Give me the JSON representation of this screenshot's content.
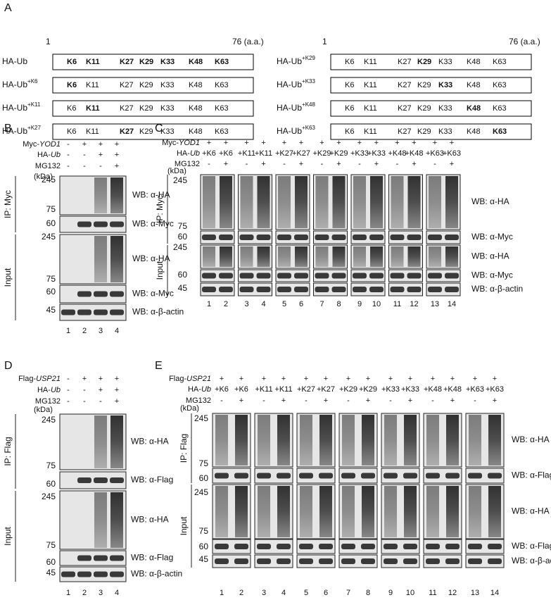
{
  "panel_a": {
    "label": "A",
    "start": "1",
    "end": "76 (a.a.)",
    "sites": [
      "K6",
      "K11",
      "K27",
      "K29",
      "K33",
      "K48",
      "K63"
    ],
    "rows": [
      {
        "name": "HA-Ub",
        "bold": [
          "K6",
          "K11",
          "K27",
          "K29",
          "K33",
          "K48",
          "K63"
        ]
      },
      {
        "name": "HA-Ub",
        "sup": "+K6",
        "bold": [
          "K6"
        ]
      },
      {
        "name": "HA-Ub",
        "sup": "+K11",
        "bold": [
          "K11"
        ]
      },
      {
        "name": "HA-Ub",
        "sup": "+K27",
        "bold": [
          "K27"
        ]
      },
      {
        "name": "HA-Ub",
        "sup": "+K29",
        "bold": [
          "K29"
        ]
      },
      {
        "name": "HA-Ub",
        "sup": "+K33",
        "bold": [
          "K33"
        ]
      },
      {
        "name": "HA-Ub",
        "sup": "+K48",
        "bold": [
          "K48"
        ]
      },
      {
        "name": "HA-Ub",
        "sup": "+K63",
        "bold": [
          "K63"
        ]
      }
    ]
  },
  "panels": [
    {
      "label": "B",
      "unit": "(kDa)",
      "conditions": [
        {
          "name": "Myc-",
          "gene": "YOD1",
          "values": [
            "-",
            "+",
            "+",
            "+"
          ]
        },
        {
          "name": "HA-",
          "gene": "Ub",
          "values": [
            "-",
            "-",
            "+",
            "+"
          ]
        },
        {
          "name": "MG132",
          "values": [
            "-",
            "-",
            "-",
            "+"
          ]
        }
      ],
      "groups": [
        {
          "name": "IP: Myc",
          "blots": [
            {
              "label": "WB: α-HA",
              "kind": "smear",
              "markers": [
                245,
                75
              ]
            },
            {
              "label": "WB: α-Myc",
              "kind": "band",
              "markers": [
                60
              ]
            }
          ]
        },
        {
          "name": "Input",
          "blots": [
            {
              "label": "WB: α-HA",
              "kind": "smear",
              "markers": [
                245,
                75
              ]
            },
            {
              "label": "WB: α-Myc",
              "kind": "band",
              "markers": [
                60
              ]
            },
            {
              "label": "WB: α-β-actin",
              "kind": "loading",
              "markers": [
                45
              ]
            }
          ]
        }
      ],
      "lanes": [
        "1",
        "2",
        "3",
        "4"
      ]
    },
    {
      "label": "C",
      "unit": "(kDa)",
      "conditions": [
        {
          "name": "Myc-",
          "gene": "YOD1",
          "values": [
            "+",
            "+",
            "+",
            "+",
            "+",
            "+",
            "+",
            "+",
            "+",
            "+",
            "+",
            "+",
            "+",
            "+"
          ]
        },
        {
          "name": "HA-",
          "gene": "Ub",
          "values": [
            "+K6",
            "+K6",
            "+K11",
            "+K11",
            "+K27",
            "+K27",
            "+K29",
            "+K29",
            "+K33",
            "+K33",
            "+K48",
            "+K48",
            "+K63",
            "+K63"
          ]
        },
        {
          "name": "MG132",
          "values": [
            "-",
            "+",
            "-",
            "+",
            "-",
            "+",
            "-",
            "+",
            "-",
            "+",
            "-",
            "+",
            "-",
            "+"
          ]
        }
      ],
      "groups": [
        {
          "name": "IP: Myc",
          "blots": [
            {
              "label": "WB: α-HA",
              "kind": "smear",
              "markers": [
                245,
                75
              ]
            },
            {
              "label": "WB: α-Myc",
              "kind": "band",
              "markers": [
                60
              ]
            }
          ]
        },
        {
          "name": "Input",
          "blots": [
            {
              "label": "WB: α-HA",
              "kind": "smear",
              "markers": [
                245
              ]
            },
            {
              "label": "WB: α-Myc",
              "kind": "band",
              "markers": [
                60
              ]
            },
            {
              "label": "WB: α-β-actin",
              "kind": "loading",
              "markers": [
                45
              ]
            }
          ]
        }
      ],
      "lanes": [
        "1",
        "2",
        "3",
        "4",
        "5",
        "6",
        "7",
        "8",
        "9",
        "10",
        "11",
        "12",
        "13",
        "14"
      ]
    },
    {
      "label": "D",
      "unit": "(kDa)",
      "conditions": [
        {
          "name": "Flag-",
          "gene": "USP21",
          "values": [
            "-",
            "+",
            "+",
            "+"
          ]
        },
        {
          "name": "HA-",
          "gene": "Ub",
          "values": [
            "-",
            "-",
            "+",
            "+"
          ]
        },
        {
          "name": "MG132",
          "values": [
            "-",
            "-",
            "-",
            "+"
          ]
        }
      ],
      "groups": [
        {
          "name": "IP: Flag",
          "blots": [
            {
              "label": "WB: α-HA",
              "kind": "smear",
              "markers": [
                245,
                75
              ]
            },
            {
              "label": "WB: α-Flag",
              "kind": "band",
              "markers": [
                60
              ]
            }
          ]
        },
        {
          "name": "Input",
          "blots": [
            {
              "label": "WB: α-HA",
              "kind": "smear",
              "markers": [
                245,
                75
              ]
            },
            {
              "label": "WB: α-Flag",
              "kind": "band",
              "markers": [
                60
              ]
            },
            {
              "label": "WB: α-β-actin",
              "kind": "loading",
              "markers": [
                45
              ]
            }
          ]
        }
      ],
      "lanes": [
        "1",
        "2",
        "3",
        "4"
      ]
    },
    {
      "label": "E",
      "unit": "(kDa)",
      "conditions": [
        {
          "name": "Flag-",
          "gene": "USP21",
          "values": [
            "+",
            "+",
            "+",
            "+",
            "+",
            "+",
            "+",
            "+",
            "+",
            "+",
            "+",
            "+",
            "+",
            "+"
          ]
        },
        {
          "name": "HA-",
          "gene": "Ub",
          "values": [
            "+K6",
            "+K6",
            "+K11",
            "+K11",
            "+K27",
            "+K27",
            "+K29",
            "+K29",
            "+K33",
            "+K33",
            "+K48",
            "+K48",
            "+K63",
            "+K63"
          ]
        },
        {
          "name": "MG132",
          "values": [
            "-",
            "+",
            "-",
            "+",
            "-",
            "+",
            "-",
            "+",
            "-",
            "+",
            "-",
            "+",
            "-",
            "+"
          ]
        }
      ],
      "groups": [
        {
          "name": "IP: Flag",
          "blots": [
            {
              "label": "WB: α-HA",
              "kind": "smear",
              "markers": [
                245,
                75
              ]
            },
            {
              "label": "WB: α-Flag",
              "kind": "band",
              "markers": [
                60
              ]
            }
          ]
        },
        {
          "name": "Input",
          "blots": [
            {
              "label": "WB: α-HA",
              "kind": "smear",
              "markers": [
                245,
                75
              ]
            },
            {
              "label": "WB: α-Flag",
              "kind": "band",
              "markers": [
                60
              ]
            },
            {
              "label": "WB: α-β-actin",
              "kind": "loading",
              "markers": [
                45
              ]
            }
          ]
        }
      ],
      "lanes": [
        "1",
        "2",
        "3",
        "4",
        "5",
        "6",
        "7",
        "8",
        "9",
        "10",
        "11",
        "12",
        "13",
        "14"
      ]
    }
  ]
}
